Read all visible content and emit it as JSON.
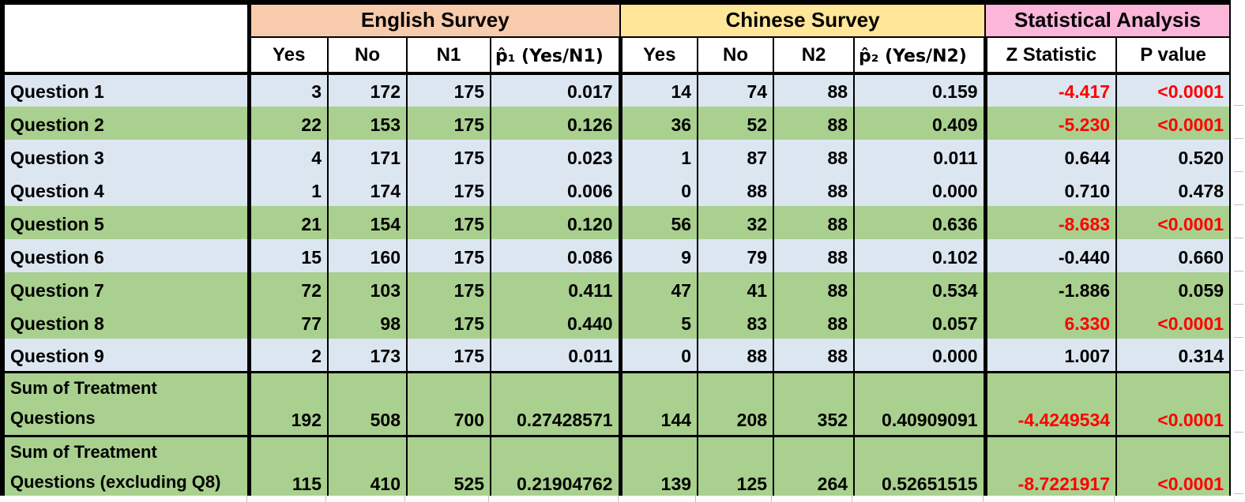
{
  "colors": {
    "row_blue": "#DCE6F1",
    "row_green": "#A9D08E",
    "group_english": "#F8CBAD",
    "group_chinese": "#FFE699",
    "group_statistical": "#FBB6DA",
    "significant_red": "#FF0000"
  },
  "header": {
    "corner": "",
    "groups": [
      {
        "label": "English Survey",
        "color": "#F8CBAD"
      },
      {
        "label": "Chinese Survey",
        "color": "#FFE699"
      },
      {
        "label": "Statistical Analysis",
        "color": "#FBB6DA"
      }
    ],
    "columns": [
      "Yes",
      "No",
      "N1",
      "p̂₁ (Yes/N1)",
      "Yes",
      "No",
      "N2",
      "p̂₂ (Yes/N2)",
      "Z Statistic",
      "P value"
    ]
  },
  "rows": [
    {
      "label": "Question 1",
      "bg": "blue",
      "tall": false,
      "significant": true,
      "values": [
        "3",
        "172",
        "175",
        "0.017",
        "14",
        "74",
        "88",
        "0.159",
        "-4.417",
        "<0.0001"
      ]
    },
    {
      "label": "Question 2",
      "bg": "green",
      "tall": false,
      "significant": true,
      "values": [
        "22",
        "153",
        "175",
        "0.126",
        "36",
        "52",
        "88",
        "0.409",
        "-5.230",
        "<0.0001"
      ]
    },
    {
      "label": "Question 3",
      "bg": "blue",
      "tall": false,
      "significant": false,
      "values": [
        "4",
        "171",
        "175",
        "0.023",
        "1",
        "87",
        "88",
        "0.011",
        "0.644",
        "0.520"
      ]
    },
    {
      "label": "Question 4",
      "bg": "blue",
      "tall": false,
      "significant": false,
      "values": [
        "1",
        "174",
        "175",
        "0.006",
        "0",
        "88",
        "88",
        "0.000",
        "0.710",
        "0.478"
      ]
    },
    {
      "label": "Question 5",
      "bg": "green",
      "tall": false,
      "significant": true,
      "values": [
        "21",
        "154",
        "175",
        "0.120",
        "56",
        "32",
        "88",
        "0.636",
        "-8.683",
        "<0.0001"
      ]
    },
    {
      "label": "Question 6",
      "bg": "blue",
      "tall": false,
      "significant": false,
      "values": [
        "15",
        "160",
        "175",
        "0.086",
        "9",
        "79",
        "88",
        "0.102",
        "-0.440",
        "0.660"
      ]
    },
    {
      "label": "Question 7",
      "bg": "green",
      "tall": false,
      "significant": false,
      "values": [
        "72",
        "103",
        "175",
        "0.411",
        "47",
        "41",
        "88",
        "0.534",
        "-1.886",
        "0.059"
      ]
    },
    {
      "label": "Question 8",
      "bg": "green",
      "tall": false,
      "significant": true,
      "values": [
        "77",
        "98",
        "175",
        "0.440",
        "5",
        "83",
        "88",
        "0.057",
        "6.330",
        "<0.0001"
      ]
    },
    {
      "label": "Question 9",
      "bg": "blue",
      "tall": false,
      "significant": false,
      "values": [
        "2",
        "173",
        "175",
        "0.011",
        "0",
        "88",
        "88",
        "0.000",
        "1.007",
        "0.314"
      ]
    },
    {
      "label": "Sum of Treatment\nQuestions",
      "bg": "green",
      "tall": true,
      "significant": true,
      "values": [
        "192",
        "508",
        "700",
        "0.27428571",
        "144",
        "208",
        "352",
        "0.40909091",
        "-4.4249534",
        "<0.0001"
      ]
    },
    {
      "label": "Sum of Treatment\nQuestions (excluding Q8)",
      "bg": "green",
      "tall": true,
      "significant": true,
      "values": [
        "115",
        "410",
        "525",
        "0.21904762",
        "139",
        "125",
        "264",
        "0.52651515",
        "-8.7221917",
        "<0.0001"
      ]
    }
  ]
}
